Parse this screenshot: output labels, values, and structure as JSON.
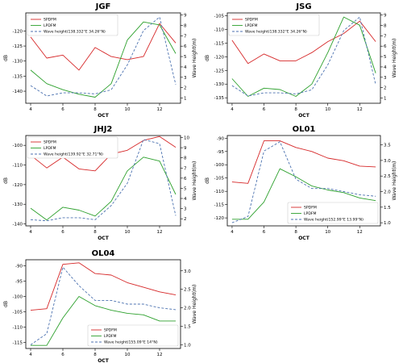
{
  "chart_data": [
    {
      "type": "line",
      "title": "JGF",
      "xlabel": "OCT",
      "ylabel": "dB",
      "ylabel_right": "Wave Height(m)",
      "x": [
        4,
        5,
        6,
        7,
        8,
        9,
        10,
        11,
        12,
        13
      ],
      "xticks": [
        4,
        6,
        8,
        10,
        12
      ],
      "xlim": [
        3.7,
        13.3
      ],
      "ylim": [
        -144,
        -114
      ],
      "yticks": [
        -140,
        -135,
        -130,
        -125,
        -120
      ],
      "ylim_right": [
        0.5,
        9.2
      ],
      "yticks_right": [
        1,
        2,
        3,
        4,
        5,
        6,
        7,
        8,
        9
      ],
      "legend_position": "upper-left",
      "series": [
        {
          "name": "SPDFM",
          "axis": "left",
          "color": "#d62728",
          "dash": false,
          "values": [
            -122,
            -129,
            -128,
            -133,
            -125.5,
            -128.5,
            -129.5,
            -128.5,
            -117.5,
            -124
          ]
        },
        {
          "name": "LPDFM",
          "axis": "left",
          "color": "#2ca02c",
          "dash": false,
          "values": [
            -133,
            -137.5,
            -139.5,
            -141,
            -142,
            -137.5,
            -123,
            -117,
            -118,
            -127.5
          ]
        },
        {
          "name": "Wave height(138.332°E 34.26°N)",
          "axis": "right",
          "color": "#4c72b0",
          "dash": true,
          "values": [
            2.2,
            1.2,
            1.5,
            1.5,
            1.4,
            1.8,
            4.2,
            7.5,
            8.8,
            2.3
          ]
        }
      ]
    },
    {
      "type": "line",
      "title": "JSG",
      "xlabel": "OCT",
      "ylabel": "dB",
      "ylabel_right": "Wave Height(m)",
      "x": [
        4,
        5,
        6,
        7,
        8,
        9,
        10,
        11,
        12,
        13
      ],
      "xticks": [
        4,
        6,
        8,
        10,
        12
      ],
      "xlim": [
        3.7,
        13.3
      ],
      "ylim": [
        -137,
        -104
      ],
      "yticks": [
        -135,
        -130,
        -125,
        -120,
        -115,
        -110,
        -105
      ],
      "ylim_right": [
        0.5,
        9.2
      ],
      "yticks_right": [
        1,
        2,
        3,
        4,
        5,
        6,
        7,
        8,
        9
      ],
      "legend_position": "upper-left",
      "series": [
        {
          "name": "SPDFM",
          "axis": "left",
          "color": "#d62728",
          "dash": false,
          "values": [
            -114,
            -122.5,
            -119,
            -121.5,
            -121.5,
            -118.5,
            -114.5,
            -111.5,
            -107,
            -114.5
          ]
        },
        {
          "name": "LPDFM",
          "axis": "left",
          "color": "#2ca02c",
          "dash": false,
          "values": [
            -128,
            -134.5,
            -131.5,
            -132,
            -134.5,
            -130,
            -118.5,
            -105.5,
            -108.5,
            -126
          ]
        },
        {
          "name": "Wave height(138.332°E 34.26°N)",
          "axis": "right",
          "color": "#4c72b0",
          "dash": true,
          "values": [
            2.2,
            1.2,
            1.5,
            1.5,
            1.4,
            1.8,
            4.2,
            7.5,
            8.8,
            2.3
          ]
        }
      ]
    },
    {
      "type": "line",
      "title": "JHJ2",
      "xlabel": "OCT",
      "ylabel": "dB",
      "ylabel_right": "Wave Height(m)",
      "x": [
        4,
        5,
        6,
        7,
        8,
        9,
        10,
        11,
        12,
        13
      ],
      "xticks": [
        4,
        6,
        8,
        10,
        12
      ],
      "xlim": [
        3.7,
        13.3
      ],
      "ylim": [
        -141,
        -95
      ],
      "yticks": [
        -140,
        -130,
        -120,
        -110,
        -100
      ],
      "ylim_right": [
        1.3,
        10.2
      ],
      "yticks_right": [
        2,
        3,
        4,
        5,
        6,
        7,
        8,
        9,
        10
      ],
      "legend_position": "upper-left",
      "series": [
        {
          "name": "SPDFM",
          "axis": "left",
          "color": "#d62728",
          "dash": false,
          "values": [
            -105,
            -111.5,
            -106,
            -112,
            -113,
            -104.5,
            -102.5,
            -97.5,
            -95.5,
            -101
          ]
        },
        {
          "name": "LPDFM",
          "axis": "left",
          "color": "#2ca02c",
          "dash": false,
          "values": [
            -132,
            -138,
            -131.5,
            -133,
            -136,
            -128.5,
            -113,
            -106,
            -108,
            -125
          ]
        },
        {
          "name": "Wave height(139.92°E 32.71°N)",
          "axis": "right",
          "color": "#4c72b0",
          "dash": true,
          "values": [
            1.9,
            1.8,
            2.1,
            2.1,
            1.9,
            3.3,
            5.5,
            9.8,
            9.4,
            2.3
          ]
        }
      ]
    },
    {
      "type": "line",
      "title": "OL01",
      "xlabel": "OCT",
      "ylabel": "dB",
      "ylabel_right": "Wave Height(m)",
      "x": [
        4,
        5,
        6,
        7,
        8,
        9,
        10,
        11,
        12,
        13
      ],
      "xticks": [
        4,
        6,
        8,
        10,
        12
      ],
      "xlim": [
        3.7,
        13.3
      ],
      "ylim": [
        -123,
        -89
      ],
      "yticks": [
        -120,
        -115,
        -110,
        -105,
        -100,
        -95,
        -90
      ],
      "ylim_right": [
        0.9,
        3.8
      ],
      "yticks_right": [
        1.0,
        1.5,
        2.0,
        2.5,
        3.0,
        3.5
      ],
      "legend_position": "lower-right",
      "series": [
        {
          "name": "SPDFM",
          "axis": "left",
          "color": "#d62728",
          "dash": false,
          "values": [
            -106.5,
            -107,
            -91,
            -91,
            -93.5,
            -95,
            -97.5,
            -98.5,
            -100.5,
            -100.8
          ]
        },
        {
          "name": "LPDFM",
          "axis": "left",
          "color": "#2ca02c",
          "dash": false,
          "values": [
            -120.5,
            -120.5,
            -114,
            -101.5,
            -104.5,
            -108,
            -109.5,
            -110.5,
            -112.5,
            -113.5
          ]
        },
        {
          "name": "Wave height(152.99°E 13.99°N)",
          "axis": "right",
          "color": "#4c72b0",
          "dash": true,
          "values": [
            1.0,
            1.2,
            3.3,
            3.6,
            2.4,
            2.1,
            2.1,
            2.0,
            1.9,
            1.85
          ]
        }
      ]
    },
    {
      "type": "line",
      "title": "OL04",
      "xlabel": "OCT",
      "ylabel": "dB",
      "ylabel_right": "Wave Height(m)",
      "x": [
        4,
        5,
        6,
        7,
        8,
        9,
        10,
        11,
        12,
        13
      ],
      "xticks": [
        4,
        6,
        8,
        10,
        12
      ],
      "xlim": [
        3.7,
        13.3
      ],
      "ylim": [
        -117,
        -88
      ],
      "yticks": [
        -115,
        -110,
        -105,
        -100,
        -95,
        -90
      ],
      "ylim_right": [
        0.9,
        3.3
      ],
      "yticks_right": [
        1.0,
        1.5,
        2.0,
        2.5,
        3.0
      ],
      "legend_position": "lower-right",
      "series": [
        {
          "name": "SPDFM",
          "axis": "left",
          "color": "#d62728",
          "dash": false,
          "values": [
            -104.5,
            -104,
            -89.5,
            -89,
            -92.5,
            -93,
            -95.5,
            -97,
            -98.5,
            -99.5
          ]
        },
        {
          "name": "LPDFM",
          "axis": "left",
          "color": "#2ca02c",
          "dash": false,
          "values": [
            -116,
            -116,
            -107,
            -100,
            -103,
            -104.5,
            -105.5,
            -106,
            -108,
            -108
          ]
        },
        {
          "name": "Wave height(155.09°E 14°N)",
          "axis": "right",
          "color": "#4c72b0",
          "dash": true,
          "values": [
            1.0,
            1.3,
            3.1,
            2.6,
            2.2,
            2.2,
            2.1,
            2.1,
            2.0,
            1.95
          ]
        }
      ]
    }
  ]
}
